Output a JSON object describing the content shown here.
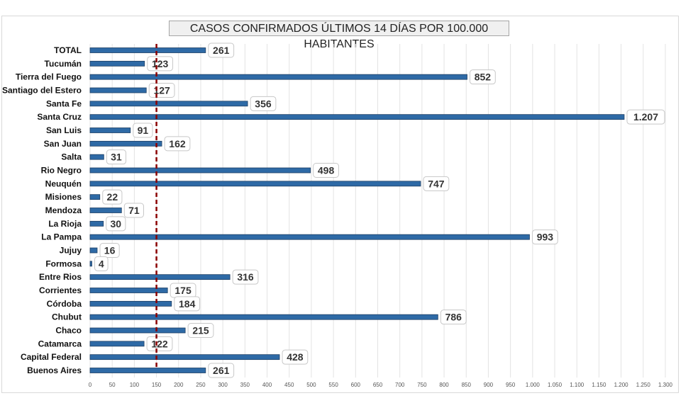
{
  "chart_data": {
    "type": "bar",
    "orientation": "horizontal",
    "title": "CASOS CONFIRMADOS ÚLTIMOS 14 DÍAS POR 100.000 HABITANTES",
    "categories": [
      "TOTAL",
      "Tucumán",
      "Tierra del Fuego",
      "Santiago del Estero",
      "Santa Fe",
      "Santa Cruz",
      "San Luis",
      "San Juan",
      "Salta",
      "Rio Negro",
      "Neuquén",
      "Misiones",
      "Mendoza",
      "La Rioja",
      "La Pampa",
      "Jujuy",
      "Formosa",
      "Entre Rios",
      "Corrientes",
      "Córdoba",
      "Chubut",
      "Chaco",
      "Catamarca",
      "Capital Federal",
      "Buenos Aires"
    ],
    "values": [
      261,
      123,
      852,
      127,
      356,
      1207,
      91,
      162,
      31,
      498,
      747,
      22,
      71,
      30,
      993,
      16,
      4,
      316,
      175,
      184,
      786,
      215,
      122,
      428,
      261
    ],
    "value_labels": [
      "261",
      "123",
      "852",
      "127",
      "356",
      "1.207",
      "91",
      "162",
      "31",
      "498",
      "747",
      "22",
      "71",
      "30",
      "993",
      "16",
      "4",
      "316",
      "175",
      "184",
      "786",
      "215",
      "122",
      "428",
      "261"
    ],
    "xlim": [
      0,
      1300
    ],
    "xticks": [
      0,
      50,
      100,
      150,
      200,
      250,
      300,
      350,
      400,
      450,
      500,
      550,
      600,
      650,
      700,
      750,
      800,
      850,
      900,
      950,
      1000,
      1050,
      1100,
      1150,
      1200,
      1250,
      1300
    ],
    "xtick_labels": [
      "0",
      "50",
      "100",
      "150",
      "200",
      "250",
      "300",
      "350",
      "400",
      "450",
      "500",
      "550",
      "600",
      "650",
      "700",
      "750",
      "800",
      "850",
      "900",
      "950",
      "1.000",
      "1.050",
      "1.100",
      "1.150",
      "1.200",
      "1.250",
      "1.300"
    ],
    "reference_line": {
      "value": 150,
      "style": "dashed",
      "color": "#8b0000"
    },
    "bar_color": "#2e6aa6",
    "grid": true,
    "xlabel": "",
    "ylabel": ""
  }
}
